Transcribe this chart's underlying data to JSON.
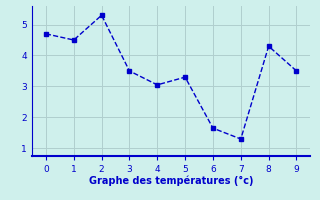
{
  "x": [
    0,
    1,
    2,
    3,
    4,
    5,
    6,
    7,
    8,
    9
  ],
  "y": [
    4.7,
    4.5,
    5.3,
    3.5,
    3.05,
    3.3,
    1.65,
    1.3,
    4.3,
    3.5
  ],
  "line_color": "#0000cc",
  "background_color": "#cff0ec",
  "xlabel": "Graphe des températures (°c)",
  "xlabel_color": "#0000cc",
  "grid_color": "#b0cece",
  "ylim": [
    0.75,
    5.6
  ],
  "xlim": [
    -0.5,
    9.5
  ],
  "yticks": [
    1,
    2,
    3,
    4,
    5
  ],
  "xticks": [
    0,
    1,
    2,
    3,
    4,
    5,
    6,
    7,
    8,
    9
  ],
  "marker": "s",
  "marker_size": 2.5,
  "line_width": 1.0,
  "linestyle": "--"
}
